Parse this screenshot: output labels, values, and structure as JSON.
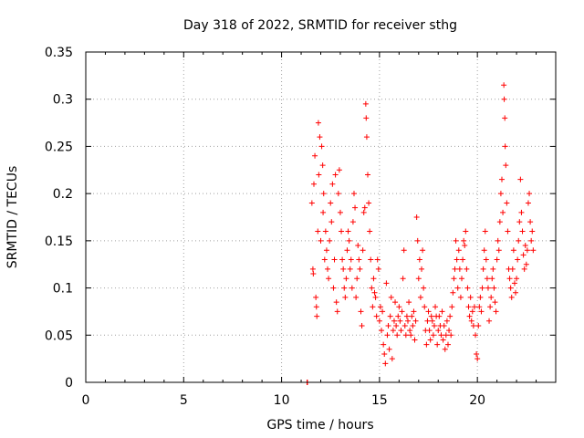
{
  "chart_data": {
    "type": "scatter",
    "title": "Day 318 of 2022, SRMTID for receiver sthg",
    "xlabel": "GPS time / hours",
    "ylabel": "SRMTID / TECUs",
    "xlim": [
      0,
      24
    ],
    "ylim": [
      0,
      0.35
    ],
    "xticks": [
      0,
      5,
      10,
      15,
      20
    ],
    "yticks": [
      0,
      0.05,
      0.1,
      0.15,
      0.2,
      0.25,
      0.3,
      0.35
    ],
    "xtick_labels": [
      "0",
      "5",
      "10",
      "15",
      "20"
    ],
    "ytick_labels": [
      "0",
      "0.05",
      "0.1",
      "0.15",
      "0.2",
      "0.25",
      "0.3",
      "0.35"
    ],
    "grid": true,
    "marker": "+",
    "color": "#ff0000",
    "series": [
      {
        "name": "SRMTID",
        "points": [
          [
            11.3,
            0.0
          ],
          [
            11.32,
            0.0
          ],
          [
            11.55,
            0.19
          ],
          [
            11.6,
            0.12
          ],
          [
            11.62,
            0.115
          ],
          [
            11.65,
            0.21
          ],
          [
            11.7,
            0.24
          ],
          [
            11.75,
            0.09
          ],
          [
            11.78,
            0.08
          ],
          [
            11.8,
            0.07
          ],
          [
            11.85,
            0.16
          ],
          [
            11.88,
            0.275
          ],
          [
            11.9,
            0.22
          ],
          [
            11.95,
            0.26
          ],
          [
            12.0,
            0.15
          ],
          [
            12.05,
            0.25
          ],
          [
            12.1,
            0.23
          ],
          [
            12.12,
            0.18
          ],
          [
            12.15,
            0.2
          ],
          [
            12.2,
            0.13
          ],
          [
            12.25,
            0.16
          ],
          [
            12.3,
            0.14
          ],
          [
            12.35,
            0.12
          ],
          [
            12.4,
            0.11
          ],
          [
            12.45,
            0.15
          ],
          [
            12.5,
            0.19
          ],
          [
            12.55,
            0.17
          ],
          [
            12.6,
            0.21
          ],
          [
            12.65,
            0.1
          ],
          [
            12.7,
            0.13
          ],
          [
            12.75,
            0.22
          ],
          [
            12.8,
            0.085
          ],
          [
            12.85,
            0.075
          ],
          [
            12.9,
            0.2
          ],
          [
            12.95,
            0.225
          ],
          [
            13.0,
            0.18
          ],
          [
            13.05,
            0.16
          ],
          [
            13.1,
            0.13
          ],
          [
            13.15,
            0.12
          ],
          [
            13.2,
            0.1
          ],
          [
            13.25,
            0.09
          ],
          [
            13.3,
            0.11
          ],
          [
            13.35,
            0.14
          ],
          [
            13.4,
            0.16
          ],
          [
            13.45,
            0.15
          ],
          [
            13.5,
            0.12
          ],
          [
            13.55,
            0.13
          ],
          [
            13.6,
            0.1
          ],
          [
            13.65,
            0.17
          ],
          [
            13.7,
            0.2
          ],
          [
            13.75,
            0.185
          ],
          [
            13.8,
            0.09
          ],
          [
            13.85,
            0.11
          ],
          [
            13.9,
            0.145
          ],
          [
            13.95,
            0.13
          ],
          [
            14.0,
            0.12
          ],
          [
            14.05,
            0.075
          ],
          [
            14.1,
            0.06
          ],
          [
            14.15,
            0.14
          ],
          [
            14.2,
            0.18
          ],
          [
            14.25,
            0.185
          ],
          [
            14.3,
            0.295
          ],
          [
            14.32,
            0.28
          ],
          [
            14.35,
            0.26
          ],
          [
            14.4,
            0.22
          ],
          [
            14.45,
            0.19
          ],
          [
            14.5,
            0.16
          ],
          [
            14.55,
            0.13
          ],
          [
            14.6,
            0.1
          ],
          [
            14.65,
            0.08
          ],
          [
            14.7,
            0.11
          ],
          [
            14.75,
            0.095
          ],
          [
            14.8,
            0.09
          ],
          [
            14.85,
            0.07
          ],
          [
            14.9,
            0.13
          ],
          [
            14.95,
            0.12
          ],
          [
            15.0,
            0.065
          ],
          [
            15.05,
            0.08
          ],
          [
            15.1,
            0.055
          ],
          [
            15.15,
            0.075
          ],
          [
            15.2,
            0.04
          ],
          [
            15.25,
            0.03
          ],
          [
            15.3,
            0.02
          ],
          [
            15.35,
            0.105
          ],
          [
            15.4,
            0.05
          ],
          [
            15.45,
            0.06
          ],
          [
            15.5,
            0.035
          ],
          [
            15.55,
            0.07
          ],
          [
            15.6,
            0.09
          ],
          [
            15.65,
            0.025
          ],
          [
            15.7,
            0.055
          ],
          [
            15.75,
            0.065
          ],
          [
            15.8,
            0.085
          ],
          [
            15.85,
            0.06
          ],
          [
            15.9,
            0.05
          ],
          [
            15.95,
            0.07
          ],
          [
            16.0,
            0.08
          ],
          [
            16.05,
            0.065
          ],
          [
            16.1,
            0.055
          ],
          [
            16.15,
            0.075
          ],
          [
            16.2,
            0.11
          ],
          [
            16.25,
            0.14
          ],
          [
            16.3,
            0.06
          ],
          [
            16.35,
            0.05
          ],
          [
            16.4,
            0.07
          ],
          [
            16.45,
            0.065
          ],
          [
            16.5,
            0.085
          ],
          [
            16.55,
            0.055
          ],
          [
            16.6,
            0.05
          ],
          [
            16.65,
            0.07
          ],
          [
            16.7,
            0.06
          ],
          [
            16.75,
            0.075
          ],
          [
            16.8,
            0.045
          ],
          [
            16.85,
            0.065
          ],
          [
            16.9,
            0.175
          ],
          [
            16.95,
            0.15
          ],
          [
            17.0,
            0.11
          ],
          [
            17.05,
            0.13
          ],
          [
            17.1,
            0.09
          ],
          [
            17.15,
            0.12
          ],
          [
            17.2,
            0.14
          ],
          [
            17.25,
            0.1
          ],
          [
            17.3,
            0.08
          ],
          [
            17.35,
            0.055
          ],
          [
            17.4,
            0.04
          ],
          [
            17.45,
            0.065
          ],
          [
            17.5,
            0.075
          ],
          [
            17.55,
            0.055
          ],
          [
            17.6,
            0.045
          ],
          [
            17.65,
            0.07
          ],
          [
            17.7,
            0.065
          ],
          [
            17.75,
            0.05
          ],
          [
            17.8,
            0.06
          ],
          [
            17.85,
            0.08
          ],
          [
            17.9,
            0.07
          ],
          [
            17.95,
            0.04
          ],
          [
            18.0,
            0.055
          ],
          [
            18.05,
            0.07
          ],
          [
            18.1,
            0.06
          ],
          [
            18.15,
            0.05
          ],
          [
            18.2,
            0.075
          ],
          [
            18.25,
            0.045
          ],
          [
            18.3,
            0.06
          ],
          [
            18.35,
            0.035
          ],
          [
            18.4,
            0.05
          ],
          [
            18.45,
            0.065
          ],
          [
            18.5,
            0.04
          ],
          [
            18.55,
            0.055
          ],
          [
            18.6,
            0.07
          ],
          [
            18.65,
            0.05
          ],
          [
            18.7,
            0.08
          ],
          [
            18.75,
            0.095
          ],
          [
            18.8,
            0.11
          ],
          [
            18.85,
            0.12
          ],
          [
            18.9,
            0.15
          ],
          [
            18.95,
            0.13
          ],
          [
            19.0,
            0.1
          ],
          [
            19.05,
            0.14
          ],
          [
            19.1,
            0.12
          ],
          [
            19.15,
            0.09
          ],
          [
            19.2,
            0.11
          ],
          [
            19.25,
            0.13
          ],
          [
            19.3,
            0.15
          ],
          [
            19.35,
            0.145
          ],
          [
            19.4,
            0.16
          ],
          [
            19.45,
            0.12
          ],
          [
            19.5,
            0.1
          ],
          [
            19.55,
            0.08
          ],
          [
            19.6,
            0.07
          ],
          [
            19.65,
            0.09
          ],
          [
            19.7,
            0.065
          ],
          [
            19.75,
            0.075
          ],
          [
            19.8,
            0.06
          ],
          [
            19.85,
            0.08
          ],
          [
            19.9,
            0.05
          ],
          [
            19.95,
            0.03
          ],
          [
            20.0,
            0.025
          ],
          [
            20.05,
            0.06
          ],
          [
            20.1,
            0.08
          ],
          [
            20.15,
            0.09
          ],
          [
            20.2,
            0.075
          ],
          [
            20.25,
            0.1
          ],
          [
            20.3,
            0.12
          ],
          [
            20.35,
            0.14
          ],
          [
            20.4,
            0.16
          ],
          [
            20.45,
            0.13
          ],
          [
            20.5,
            0.11
          ],
          [
            20.55,
            0.1
          ],
          [
            20.6,
            0.065
          ],
          [
            20.65,
            0.08
          ],
          [
            20.7,
            0.09
          ],
          [
            20.75,
            0.11
          ],
          [
            20.8,
            0.12
          ],
          [
            20.85,
            0.1
          ],
          [
            20.9,
            0.085
          ],
          [
            20.95,
            0.075
          ],
          [
            21.0,
            0.13
          ],
          [
            21.05,
            0.15
          ],
          [
            21.1,
            0.14
          ],
          [
            21.15,
            0.17
          ],
          [
            21.2,
            0.2
          ],
          [
            21.25,
            0.215
          ],
          [
            21.3,
            0.18
          ],
          [
            21.35,
            0.315
          ],
          [
            21.37,
            0.3
          ],
          [
            21.4,
            0.28
          ],
          [
            21.42,
            0.25
          ],
          [
            21.45,
            0.23
          ],
          [
            21.5,
            0.19
          ],
          [
            21.55,
            0.16
          ],
          [
            21.6,
            0.12
          ],
          [
            21.65,
            0.11
          ],
          [
            21.7,
            0.1
          ],
          [
            21.75,
            0.09
          ],
          [
            21.8,
            0.12
          ],
          [
            21.85,
            0.14
          ],
          [
            21.9,
            0.105
          ],
          [
            21.95,
            0.095
          ],
          [
            22.0,
            0.11
          ],
          [
            22.05,
            0.13
          ],
          [
            22.1,
            0.15
          ],
          [
            22.15,
            0.17
          ],
          [
            22.2,
            0.215
          ],
          [
            22.25,
            0.18
          ],
          [
            22.3,
            0.16
          ],
          [
            22.35,
            0.135
          ],
          [
            22.4,
            0.12
          ],
          [
            22.45,
            0.145
          ],
          [
            22.5,
            0.125
          ],
          [
            22.55,
            0.14
          ],
          [
            22.6,
            0.19
          ],
          [
            22.65,
            0.2
          ],
          [
            22.7,
            0.17
          ],
          [
            22.75,
            0.15
          ],
          [
            22.8,
            0.16
          ],
          [
            22.85,
            0.14
          ]
        ]
      }
    ]
  }
}
